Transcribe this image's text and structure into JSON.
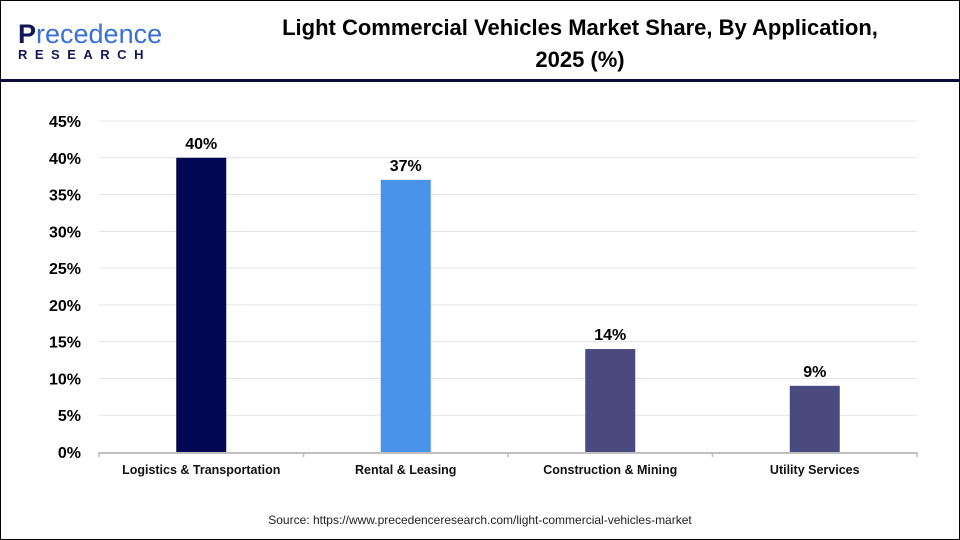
{
  "logo": {
    "line1": "Precedence",
    "line2": "RESEARCH"
  },
  "title_line1": "Light Commercial Vehicles Market Share, By Application,",
  "title_line2": "2025 (%)",
  "source": "Source: https://www.precedenceresearch.com/light-commercial-vehicles-market",
  "chart_data": {
    "type": "bar",
    "title": "Light Commercial Vehicles Market Share, By Application, 2025 (%)",
    "categories": [
      "Logistics & Transportation",
      "Rental & Leasing",
      "Construction & Mining",
      "Utility Services"
    ],
    "values": [
      40,
      37,
      14,
      9
    ],
    "data_labels": [
      "40%",
      "37%",
      "14%",
      "9%"
    ],
    "colors": [
      "#030852",
      "#4a93ea",
      "#4b4a80",
      "#4b4a80"
    ],
    "ylim": [
      0,
      45
    ],
    "yticks": [
      "0%",
      "5%",
      "10%",
      "15%",
      "20%",
      "25%",
      "30%",
      "35%",
      "40%",
      "45%"
    ],
    "grid": true,
    "xlabel": "",
    "ylabel": ""
  }
}
